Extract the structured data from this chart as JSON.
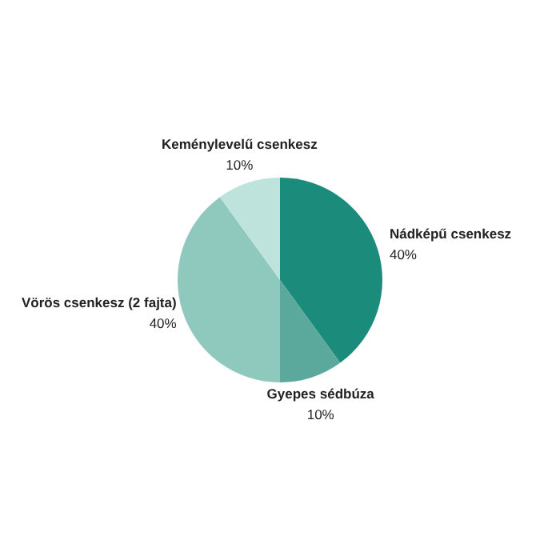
{
  "chart_data": {
    "type": "pie",
    "categories": [
      "Nádképű csenkesz",
      "Gyepes sédbúza",
      "Vörös csenkesz (2 fajta)",
      "Keménylevelű csenkesz"
    ],
    "values": [
      40,
      10,
      40,
      10
    ],
    "value_labels": [
      "40%",
      "10%",
      "40%",
      "10%"
    ],
    "colors": [
      "#1b8c7b",
      "#5ba99d",
      "#8fc8bd",
      "#bde3dc"
    ],
    "legend": false
  }
}
